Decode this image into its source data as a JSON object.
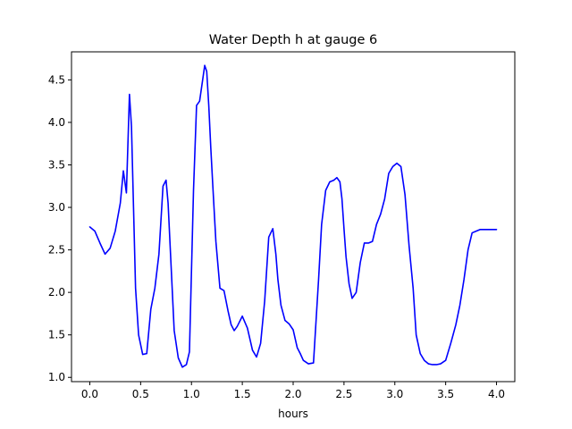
{
  "chart_data": {
    "type": "line",
    "title": "Water Depth h at gauge 6",
    "xlabel": "hours",
    "ylabel": "",
    "xlim": [
      -0.18,
      4.18
    ],
    "ylim": [
      0.95,
      4.83
    ],
    "xticks": [
      0.0,
      0.5,
      1.0,
      1.5,
      2.0,
      2.5,
      3.0,
      3.5,
      4.0
    ],
    "xtick_labels": [
      "0.0",
      "0.5",
      "1.0",
      "1.5",
      "2.0",
      "2.5",
      "3.0",
      "3.5",
      "4.0"
    ],
    "yticks": [
      1.0,
      1.5,
      2.0,
      2.5,
      3.0,
      3.5,
      4.0,
      4.5
    ],
    "ytick_labels": [
      "1.0",
      "1.5",
      "2.0",
      "2.5",
      "3.0",
      "3.5",
      "4.0",
      "4.5"
    ],
    "grid": false,
    "legend": "none",
    "series": [
      {
        "color": "#0000ff",
        "x": [
          0.0,
          0.05,
          0.1,
          0.15,
          0.2,
          0.25,
          0.3,
          0.33,
          0.36,
          0.39,
          0.41,
          0.43,
          0.45,
          0.48,
          0.52,
          0.56,
          0.6,
          0.64,
          0.68,
          0.72,
          0.75,
          0.77,
          0.8,
          0.83,
          0.87,
          0.91,
          0.95,
          0.98,
          1.02,
          1.05,
          1.08,
          1.11,
          1.13,
          1.15,
          1.17,
          1.19,
          1.21,
          1.24,
          1.28,
          1.32,
          1.36,
          1.39,
          1.42,
          1.45,
          1.5,
          1.55,
          1.6,
          1.64,
          1.68,
          1.72,
          1.76,
          1.8,
          1.83,
          1.85,
          1.88,
          1.92,
          1.96,
          2.0,
          2.04,
          2.07,
          2.1,
          2.15,
          2.2,
          2.25,
          2.28,
          2.32,
          2.36,
          2.4,
          2.43,
          2.46,
          2.48,
          2.5,
          2.52,
          2.55,
          2.58,
          2.62,
          2.66,
          2.7,
          2.74,
          2.78,
          2.82,
          2.86,
          2.9,
          2.94,
          2.98,
          3.02,
          3.06,
          3.1,
          3.14,
          3.18,
          3.21,
          3.25,
          3.29,
          3.33,
          3.37,
          3.41,
          3.45,
          3.5,
          3.55,
          3.6,
          3.64,
          3.68,
          3.72,
          3.76,
          3.8,
          3.84,
          3.88,
          3.92,
          3.96,
          4.0
        ],
        "y": [
          2.77,
          2.72,
          2.58,
          2.45,
          2.52,
          2.72,
          3.05,
          3.43,
          3.17,
          4.33,
          3.95,
          3.0,
          2.05,
          1.5,
          1.27,
          1.28,
          1.8,
          2.05,
          2.45,
          3.25,
          3.32,
          3.05,
          2.3,
          1.55,
          1.23,
          1.12,
          1.15,
          1.3,
          3.2,
          4.2,
          4.25,
          4.5,
          4.67,
          4.6,
          4.2,
          3.7,
          3.25,
          2.6,
          2.05,
          2.02,
          1.78,
          1.62,
          1.55,
          1.6,
          1.72,
          1.58,
          1.32,
          1.24,
          1.4,
          1.9,
          2.65,
          2.75,
          2.45,
          2.15,
          1.85,
          1.67,
          1.63,
          1.56,
          1.35,
          1.28,
          1.2,
          1.16,
          1.17,
          2.15,
          2.8,
          3.2,
          3.3,
          3.32,
          3.35,
          3.3,
          3.1,
          2.75,
          2.42,
          2.1,
          1.93,
          2.0,
          2.35,
          2.58,
          2.58,
          2.6,
          2.8,
          2.92,
          3.1,
          3.4,
          3.48,
          3.52,
          3.48,
          3.15,
          2.55,
          2.05,
          1.5,
          1.28,
          1.2,
          1.16,
          1.15,
          1.15,
          1.16,
          1.2,
          1.4,
          1.62,
          1.85,
          2.15,
          2.5,
          2.7,
          2.72,
          2.74,
          2.74,
          2.74,
          2.74,
          2.74
        ]
      }
    ]
  }
}
